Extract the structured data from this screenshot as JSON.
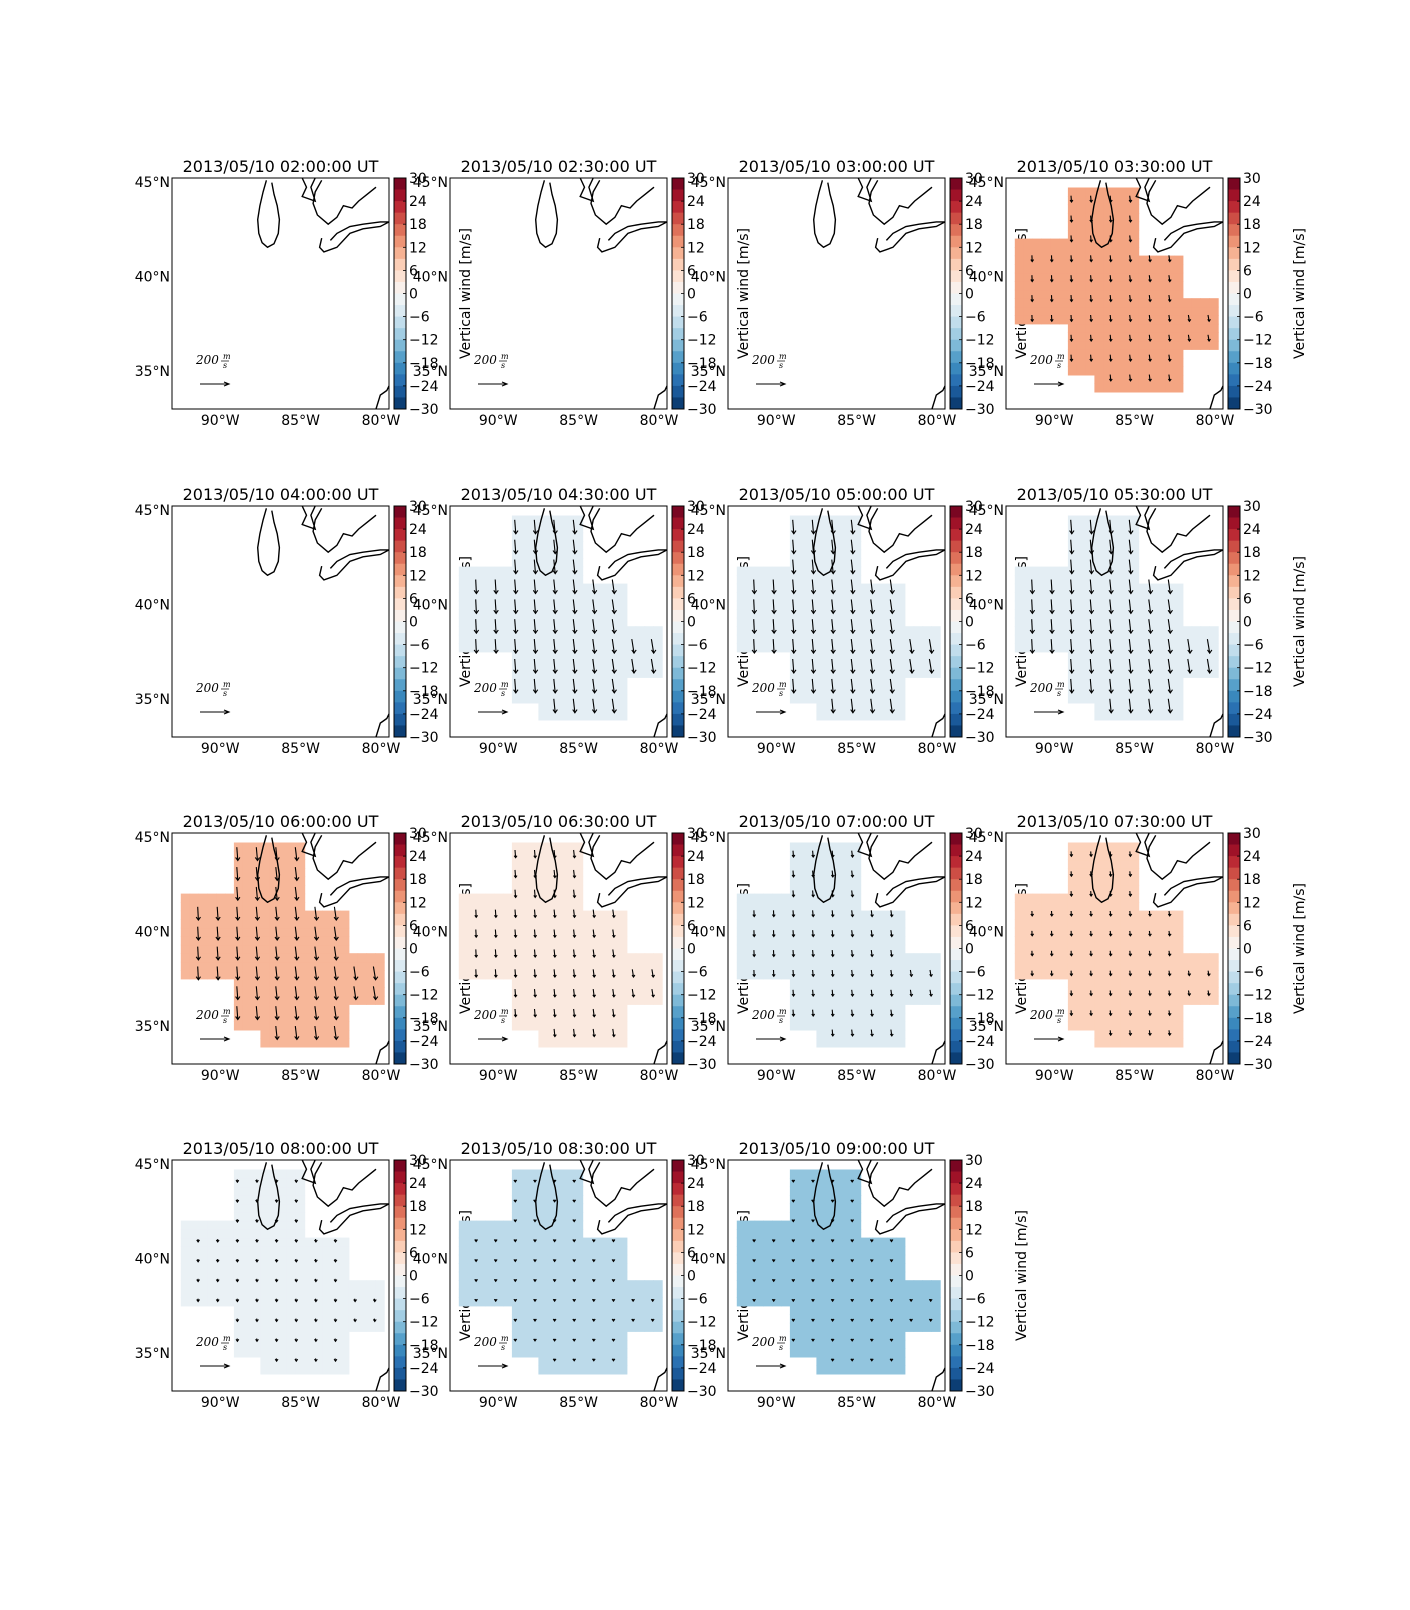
{
  "figure": {
    "colorbar_label": "Vertical wind [m/s]",
    "colorbar_ticks": [
      "30",
      "24",
      "18",
      "12",
      "6",
      "0",
      "−6",
      "−12",
      "−18",
      "−24",
      "−30"
    ],
    "lat_labels": [
      "45°N",
      "40°N",
      "35°N"
    ],
    "lon_labels": [
      "90°W",
      "85°W",
      "80°W"
    ],
    "reference_vector": {
      "value": "200",
      "units_num": "m",
      "units_den": "s"
    }
  },
  "chart_data": [
    {
      "type": "heatmap",
      "title": "2013/05/10 02:00:00 UT",
      "vertical_wind": null,
      "vector_scale": 0
    },
    {
      "type": "heatmap",
      "title": "2013/05/10 02:30:00 UT",
      "vertical_wind": null,
      "vector_scale": 0
    },
    {
      "type": "heatmap",
      "title": "2013/05/10 03:00:00 UT",
      "vertical_wind": null,
      "vector_scale": 0
    },
    {
      "type": "heatmap",
      "title": "2013/05/10 03:30:00 UT",
      "vertical_wind": 12,
      "vector_scale": 0.45
    },
    {
      "type": "heatmap",
      "title": "2013/05/10 04:00:00 UT",
      "vertical_wind": null,
      "vector_scale": 0
    },
    {
      "type": "heatmap",
      "title": "2013/05/10 04:30:00 UT",
      "vertical_wind": -3,
      "vector_scale": 1.0
    },
    {
      "type": "heatmap",
      "title": "2013/05/10 05:00:00 UT",
      "vertical_wind": -3,
      "vector_scale": 1.0
    },
    {
      "type": "heatmap",
      "title": "2013/05/10 05:30:00 UT",
      "vertical_wind": -3,
      "vector_scale": 1.0
    },
    {
      "type": "heatmap",
      "title": "2013/05/10 06:00:00 UT",
      "vertical_wind": 10,
      "vector_scale": 0.95
    },
    {
      "type": "heatmap",
      "title": "2013/05/10 06:30:00 UT",
      "vertical_wind": 3,
      "vector_scale": 0.55
    },
    {
      "type": "heatmap",
      "title": "2013/05/10 07:00:00 UT",
      "vertical_wind": -4,
      "vector_scale": 0.45
    },
    {
      "type": "heatmap",
      "title": "2013/05/10 07:30:00 UT",
      "vertical_wind": 7,
      "vector_scale": 0.35
    },
    {
      "type": "heatmap",
      "title": "2013/05/10 08:00:00 UT",
      "vertical_wind": -2,
      "vector_scale": 0.2
    },
    {
      "type": "heatmap",
      "title": "2013/05/10 08:30:00 UT",
      "vertical_wind": -8,
      "vector_scale": 0.15
    },
    {
      "type": "heatmap",
      "title": "2013/05/10 09:00:00 UT",
      "vertical_wind": -12,
      "vector_scale": 0.15
    }
  ]
}
